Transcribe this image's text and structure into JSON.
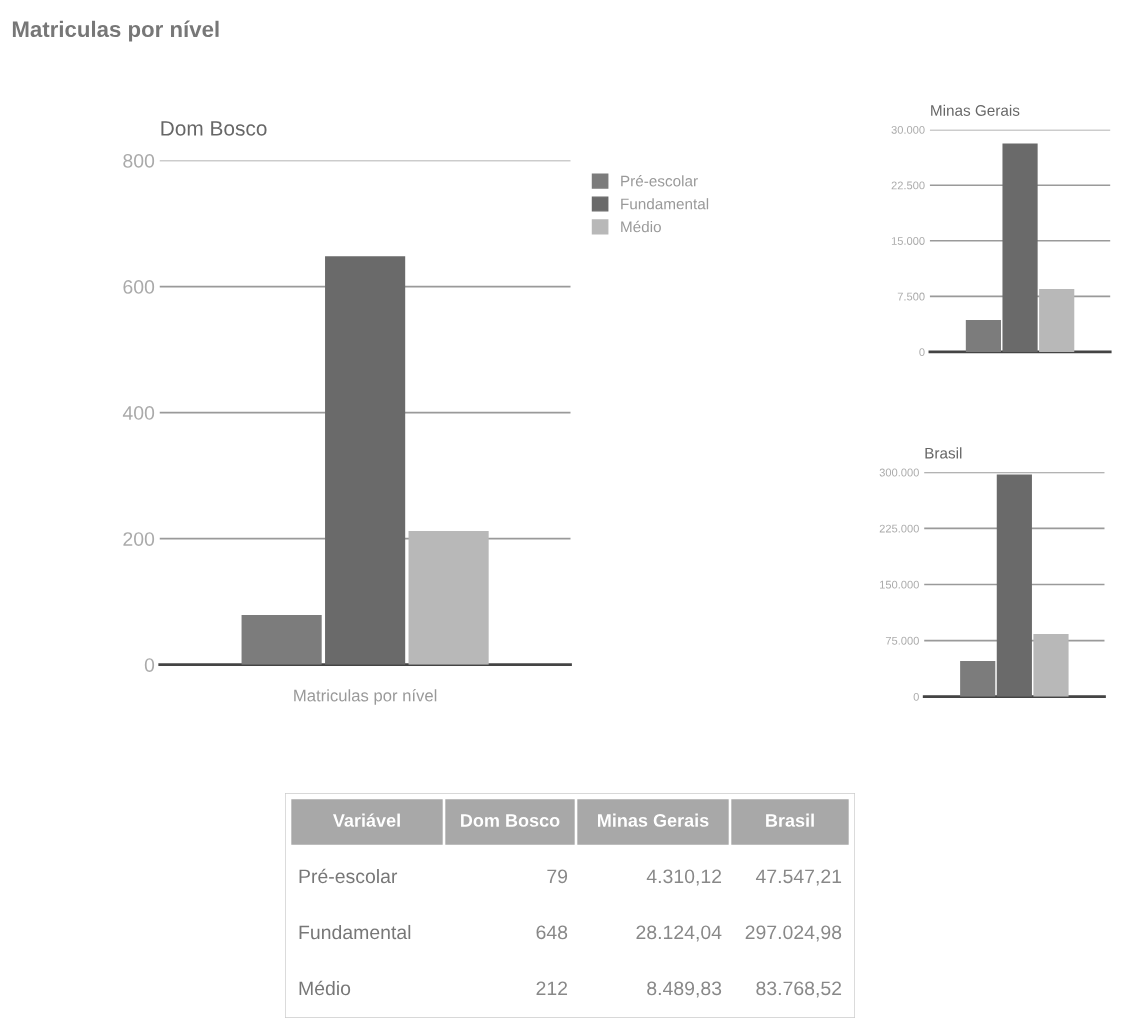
{
  "chart_data": [
    {
      "type": "bar",
      "title": "Dom Bosco",
      "xlabel": "Matriculas por nível",
      "categories": [
        null
      ],
      "annotations": [
        "Matriculas por nível"
      ],
      "series": [
        {
          "name": "Pré-escolar",
          "color": "#7c7c7c",
          "values": [
            79
          ]
        },
        {
          "name": "Fundamental",
          "color": "#6a6a6a",
          "values": [
            648
          ]
        },
        {
          "name": "Médio",
          "color": "#b8b8b8",
          "values": [
            212
          ]
        }
      ],
      "ylim": [
        0,
        800
      ],
      "yticks": [
        0,
        200,
        400,
        600,
        800
      ],
      "grid": "y",
      "legend": "top right"
    },
    {
      "type": "bar",
      "title": "Minas Gerais",
      "categories": [
        null
      ],
      "series": [
        {
          "color": "#7c7c7c",
          "values": [
            4310.12
          ]
        },
        {
          "color": "#6a6a6a",
          "values": [
            28124.04
          ]
        },
        {
          "color": "#b8b8b8",
          "values": [
            8489.83
          ]
        }
      ],
      "ylim": [
        0,
        30000
      ],
      "yticks": [
        0,
        {
          "value": 7500,
          "label": "7.500"
        },
        {
          "value": 15000,
          "label": "15.000"
        },
        {
          "value": 22500,
          "label": "22.500"
        },
        {
          "value": 30000,
          "label": "30.000"
        }
      ],
      "grid": "y"
    },
    {
      "type": "bar",
      "title": "Brasil",
      "categories": [
        null
      ],
      "series": [
        {
          "color": "#7c7c7c",
          "values": [
            47547.21
          ]
        },
        {
          "color": "#6a6a6a",
          "values": [
            297024.98
          ]
        },
        {
          "color": "#b8b8b8",
          "values": [
            83768.52
          ]
        }
      ],
      "ylim": [
        0,
        300000
      ],
      "yticks": [
        0,
        {
          "value": 75000,
          "label": "75.000"
        },
        {
          "value": 150000,
          "label": "150.000"
        },
        {
          "value": 225000,
          "label": "225.000"
        },
        {
          "value": 300000,
          "label": "300.000"
        }
      ],
      "grid": "y"
    },
    {
      "type": "other",
      "annotations": [
        "Variável"
      ],
      "categories": [
        "Dom Bosco",
        "Minas Gerais",
        "Brasil"
      ],
      "y_categories": [
        "Pré-escolar",
        "Fundamental",
        "Médio"
      ],
      "cell_labels": [
        [
          "79",
          "4.310,12",
          "47.547,21"
        ],
        [
          "648",
          "28.124,04",
          "297.024,98"
        ],
        [
          "212",
          "8.489,83",
          "83.768,52"
        ]
      ]
    }
  ]
}
